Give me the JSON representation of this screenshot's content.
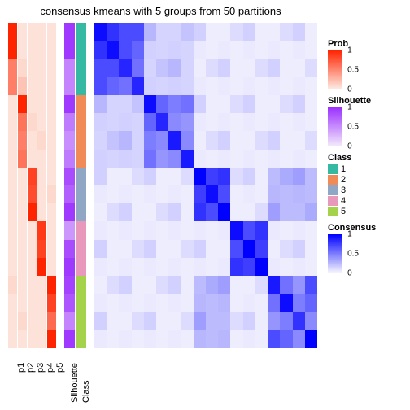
{
  "title": "consensus kmeans with 5 groups from 50 partitions",
  "n": 18,
  "group_sizes": [
    4,
    4,
    3,
    3,
    4
  ],
  "p_labels": [
    "p1",
    "p2",
    "p3",
    "p4",
    "p5"
  ],
  "anno_labels": [
    "Silhouette",
    "Class"
  ],
  "prob_colors": {
    "low": "#fdece4",
    "high": "#ff2400"
  },
  "silhouette_colors": {
    "low": "#f4ebfb",
    "high": "#9b30ff"
  },
  "consensus_colors": {
    "low": "#faf9fe",
    "high": "#0000ff"
  },
  "class_colors": [
    "#35b9a3",
    "#f08b57",
    "#8fa7c4",
    "#e899bb",
    "#a4d24a"
  ],
  "background": "#ffffff",
  "p_matrix": [
    [
      1.0,
      0.05,
      0.05,
      0.05,
      0.05
    ],
    [
      1.0,
      0.05,
      0.05,
      0.05,
      0.05
    ],
    [
      0.55,
      0.1,
      0.05,
      0.05,
      0.05
    ],
    [
      0.55,
      0.2,
      0.05,
      0.05,
      0.05
    ],
    [
      0.05,
      1.0,
      0.05,
      0.05,
      0.05
    ],
    [
      0.05,
      0.6,
      0.1,
      0.05,
      0.05
    ],
    [
      0.05,
      0.55,
      0.05,
      0.1,
      0.05
    ],
    [
      0.05,
      0.6,
      0.05,
      0.05,
      0.05
    ],
    [
      0.05,
      0.05,
      0.85,
      0.05,
      0.05
    ],
    [
      0.05,
      0.05,
      0.8,
      0.05,
      0.1
    ],
    [
      0.05,
      0.05,
      1.0,
      0.05,
      0.05
    ],
    [
      0.05,
      0.05,
      0.05,
      0.9,
      0.05
    ],
    [
      0.05,
      0.05,
      0.05,
      0.85,
      0.05
    ],
    [
      0.05,
      0.05,
      0.05,
      1.0,
      0.05
    ],
    [
      0.1,
      0.05,
      0.05,
      0.05,
      1.0
    ],
    [
      0.05,
      0.05,
      0.05,
      0.05,
      0.85
    ],
    [
      0.05,
      0.1,
      0.05,
      0.05,
      0.65
    ],
    [
      0.05,
      0.05,
      0.05,
      0.05,
      1.0
    ]
  ],
  "silhouette_values": [
    0.95,
    0.95,
    0.55,
    0.55,
    0.95,
    0.6,
    0.5,
    0.6,
    0.85,
    0.75,
    0.95,
    0.45,
    0.85,
    0.95,
    0.9,
    0.8,
    0.55,
    0.95
  ],
  "class_values": [
    1,
    1,
    1,
    1,
    2,
    2,
    2,
    2,
    3,
    3,
    3,
    4,
    4,
    4,
    5,
    5,
    5,
    5
  ],
  "consensus_blocks": [
    [
      [
        0.95,
        0.8,
        0.7,
        0.7
      ],
      [
        0.8,
        0.95,
        0.7,
        0.6
      ],
      [
        0.7,
        0.7,
        0.85,
        0.55
      ],
      [
        0.7,
        0.6,
        0.55,
        0.85
      ]
    ],
    [
      [
        0.95,
        0.6,
        0.5,
        0.55
      ],
      [
        0.6,
        0.85,
        0.45,
        0.4
      ],
      [
        0.5,
        0.45,
        0.9,
        0.45
      ],
      [
        0.55,
        0.4,
        0.45,
        0.9
      ]
    ],
    [
      [
        1.0,
        0.75,
        0.8
      ],
      [
        0.75,
        0.95,
        0.7
      ],
      [
        0.8,
        0.7,
        1.0
      ]
    ],
    [
      [
        0.95,
        0.7,
        0.8
      ],
      [
        0.7,
        1.0,
        0.75
      ],
      [
        0.8,
        0.75,
        1.0
      ]
    ],
    [
      [
        0.9,
        0.55,
        0.4,
        0.7
      ],
      [
        0.55,
        0.95,
        0.5,
        0.6
      ],
      [
        0.4,
        0.5,
        0.8,
        0.45
      ],
      [
        0.7,
        0.6,
        0.45,
        1.0
      ]
    ]
  ],
  "off_block_base": 0.04,
  "off_block_noise": [
    [
      0.25,
      0.05,
      0.02,
      0.1
    ],
    [
      0.05,
      0.15,
      0.08,
      0.05
    ],
    [
      0.02,
      0.08,
      0.02,
      0.25
    ],
    [
      0.1,
      0.05,
      0.25,
      0.02
    ]
  ],
  "legends": {
    "prob": {
      "title": "Prob",
      "ticks": [
        "1",
        "0.5",
        "0"
      ]
    },
    "silhouette": {
      "title": "Silhouette",
      "ticks": [
        "1",
        "0.5",
        "0"
      ]
    },
    "class": {
      "title": "Class",
      "labels": [
        "1",
        "2",
        "3",
        "4",
        "5"
      ]
    },
    "consensus": {
      "title": "Consensus",
      "ticks": [
        "1",
        "0.5",
        "0"
      ]
    }
  }
}
